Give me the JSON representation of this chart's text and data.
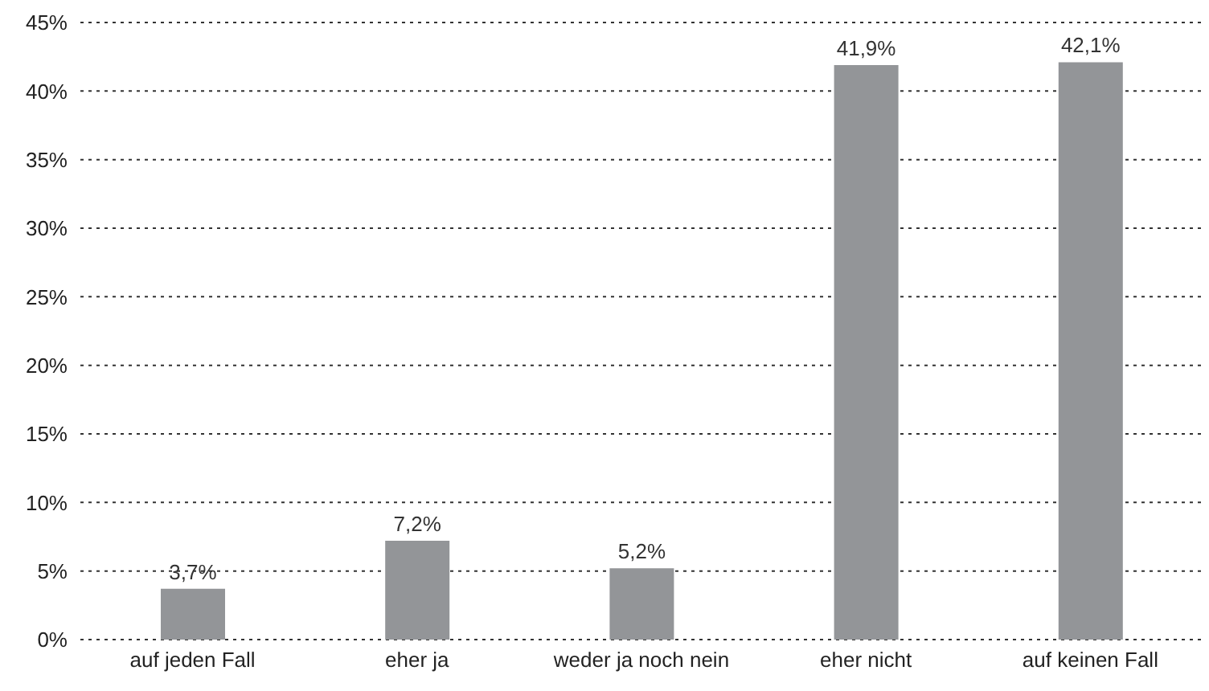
{
  "chart_data": {
    "type": "bar",
    "categories": [
      "auf jeden Fall",
      "eher ja",
      "weder ja noch nein",
      "eher nicht",
      "auf keinen Fall"
    ],
    "values": [
      3.7,
      7.2,
      5.2,
      41.9,
      42.1
    ],
    "value_labels": [
      "3,7%",
      "7,2%",
      "5,2%",
      "41,9%",
      "42,1%"
    ],
    "color": "#939598",
    "ylim": [
      0,
      45
    ],
    "yticks": [
      {
        "value": 0,
        "label": "0%"
      },
      {
        "value": 5,
        "label": "5%"
      },
      {
        "value": 10,
        "label": "10%"
      },
      {
        "value": 15,
        "label": "15%"
      },
      {
        "value": 20,
        "label": "20%"
      },
      {
        "value": 25,
        "label": "25%"
      },
      {
        "value": 30,
        "label": "30%"
      },
      {
        "value": 35,
        "label": "35%"
      },
      {
        "value": 40,
        "label": "40%"
      },
      {
        "value": 45,
        "label": "45%"
      }
    ],
    "grid": "y"
  }
}
